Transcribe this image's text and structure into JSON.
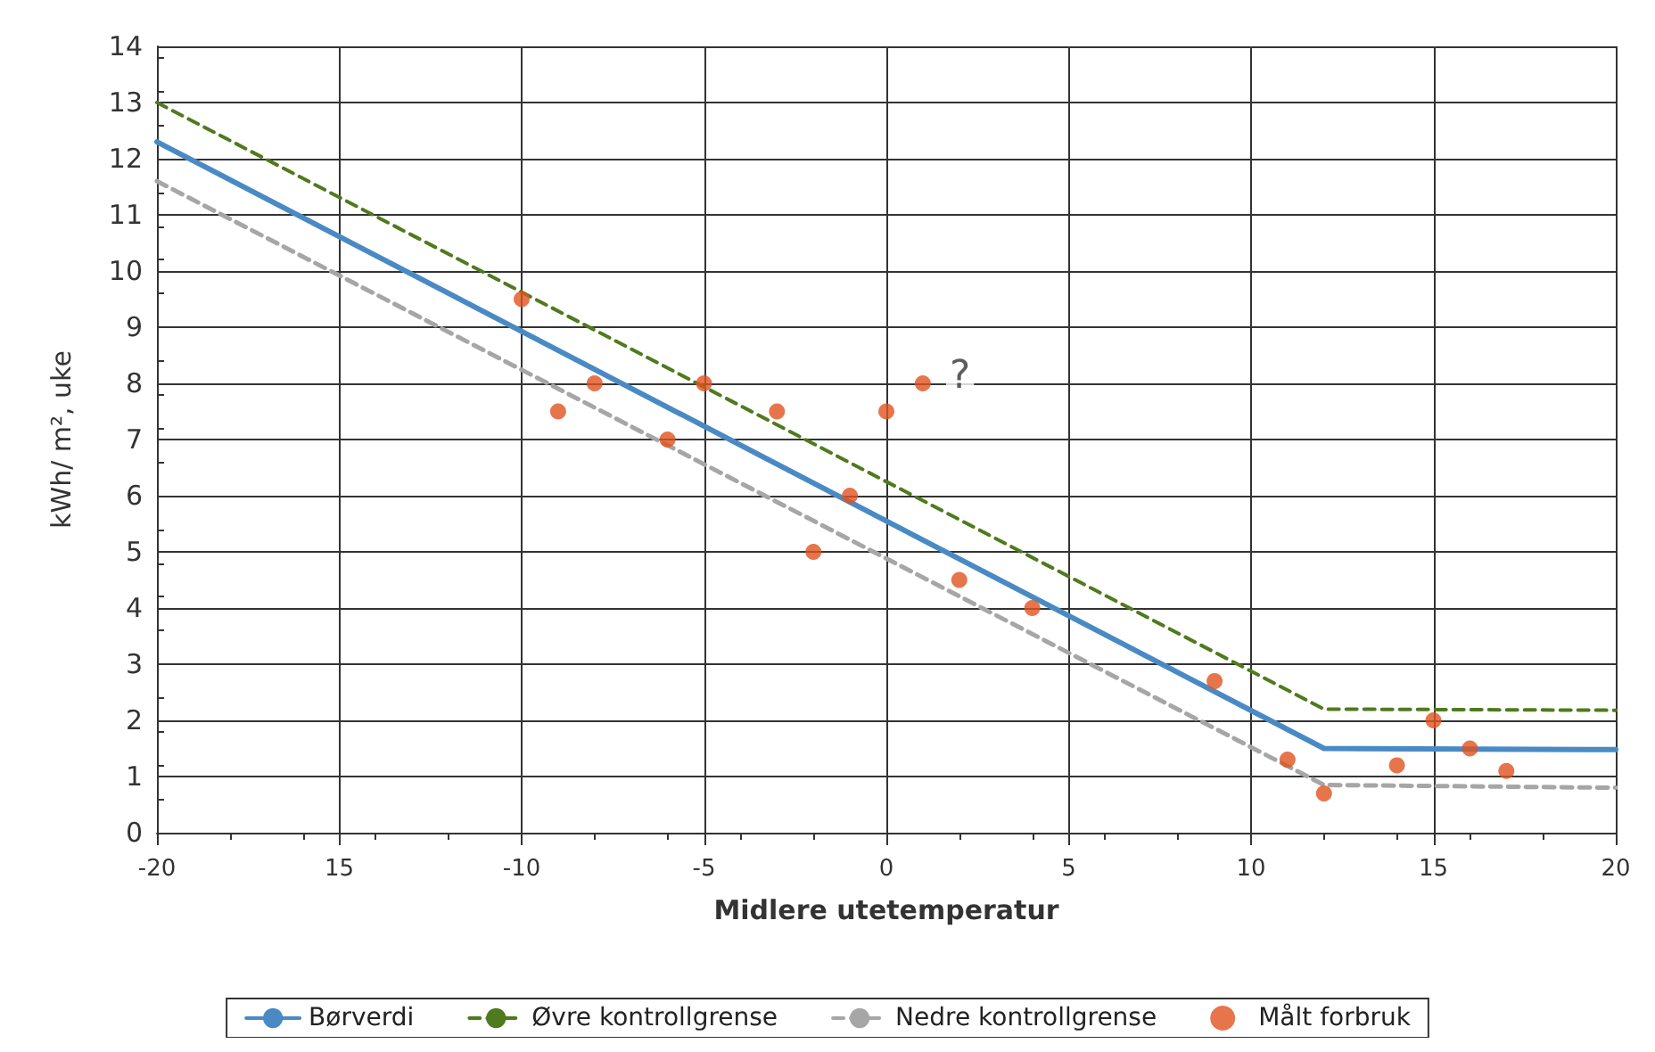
{
  "chart_data": {
    "type": "line",
    "xlabel": "Midlere utetemperatur",
    "ylabel": "kWh/ m², uke",
    "xlim": [
      -20,
      20
    ],
    "xticks": [
      -20,
      {
        "value": -15,
        "label": "15"
      },
      -10,
      -5,
      0,
      5,
      10,
      15,
      20
    ],
    "ylim": [
      0,
      14
    ],
    "yticks": [
      0,
      1,
      2,
      3,
      4,
      5,
      6,
      7,
      8,
      9,
      10,
      11,
      12,
      13,
      14
    ],
    "grid": true,
    "legend": "bottom",
    "line_style": "solid",
    "marker": "none",
    "annotations": [
      {
        "text": "?",
        "x": 1,
        "y": 8
      }
    ],
    "series": [
      {
        "name": "Børverdi",
        "color": "#4a8ac4",
        "x": [
          -20,
          12,
          20
        ],
        "values": [
          12.3,
          1.5,
          1.48
        ]
      },
      {
        "name": "Øvre kontrollgrense",
        "color": "#4f7a1e",
        "line_style": "dashed",
        "x": [
          -20,
          12,
          20
        ],
        "values": [
          13,
          2.2,
          2.18
        ]
      },
      {
        "name": "Nedre kontrollgrense",
        "color": "#a6a6a6",
        "line_style": "dashed",
        "x": [
          -20,
          12,
          20
        ],
        "values": [
          11.6,
          0.85,
          0.8
        ]
      },
      {
        "name": "Målt forbruk",
        "type": "scatter",
        "marker": "circle",
        "color": "#e0521f",
        "x": [
          -10,
          -9,
          -8,
          -6,
          -5,
          -3,
          -2,
          -1,
          0,
          1,
          2,
          4,
          9,
          11,
          12,
          14,
          15,
          16,
          17
        ],
        "values": [
          9.5,
          7.5,
          8,
          7,
          8,
          7.5,
          5,
          6,
          7.5,
          8,
          4.5,
          4,
          2.7,
          1.3,
          0.7,
          1.2,
          2,
          1.5,
          1.1
        ]
      }
    ]
  }
}
